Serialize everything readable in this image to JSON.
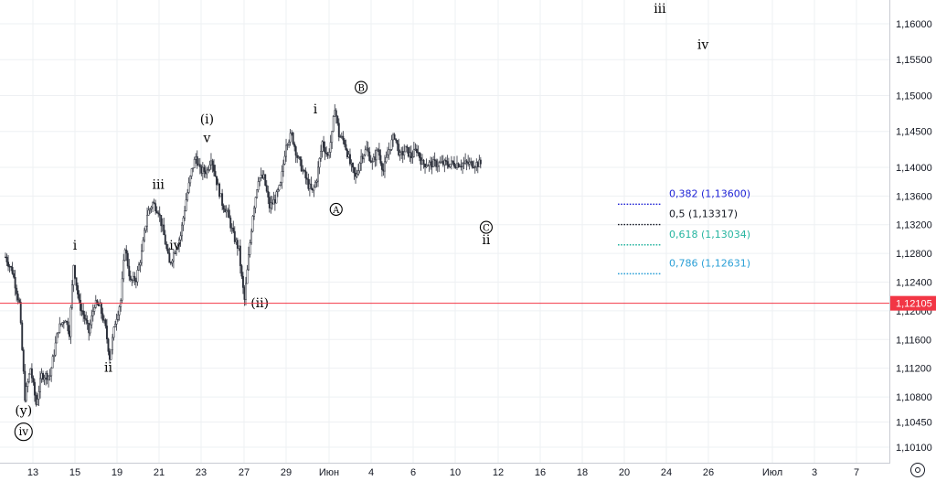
{
  "chart_data": {
    "type": "candlestick",
    "instrument_note": "",
    "y_axis": {
      "ticks": [
        "1,16000",
        "1,15500",
        "1,15000",
        "1,14500",
        "1,14000",
        "1,13600",
        "1,13200",
        "1,12800",
        "1,12400",
        "1,12000",
        "1,11600",
        "1,11200",
        "1,10800",
        "1,10450",
        "1,10100"
      ],
      "tick_values": [
        1.16,
        1.155,
        1.15,
        1.145,
        1.14,
        1.136,
        1.132,
        1.128,
        1.124,
        1.12,
        1.116,
        1.112,
        1.108,
        1.1045,
        1.101
      ]
    },
    "x_axis": {
      "ticks": [
        "13",
        "15",
        "19",
        "21",
        "23",
        "27",
        "29",
        "Июн",
        "4",
        "6",
        "10",
        "12",
        "16",
        "18",
        "20",
        "24",
        "26",
        "Июл",
        "3",
        "7"
      ]
    },
    "current_price": {
      "label": "1,12105",
      "value": 1.12105,
      "color": "#f23645"
    },
    "price_path": [
      [
        0,
        1.1275
      ],
      [
        0.5,
        1.1255
      ],
      [
        1,
        1.121
      ],
      [
        1.4,
        1.108
      ],
      [
        1.8,
        1.112
      ],
      [
        2.2,
        1.107
      ],
      [
        2.6,
        1.111
      ],
      [
        3.2,
        1.111
      ],
      [
        3.8,
        1.1175
      ],
      [
        4.3,
        1.119
      ],
      [
        4.6,
        1.117
      ],
      [
        4.9,
        1.1265
      ],
      [
        5.3,
        1.121
      ],
      [
        5.7,
        1.119
      ],
      [
        6.0,
        1.117
      ],
      [
        6.4,
        1.121
      ],
      [
        6.8,
        1.1205
      ],
      [
        7.2,
        1.1175
      ],
      [
        7.5,
        1.1135
      ],
      [
        7.9,
        1.1185
      ],
      [
        8.3,
        1.1215
      ],
      [
        8.6,
        1.129
      ],
      [
        9.0,
        1.124
      ],
      [
        9.4,
        1.1245
      ],
      [
        9.8,
        1.128
      ],
      [
        10.2,
        1.1335
      ],
      [
        10.6,
        1.135
      ],
      [
        11.0,
        1.134
      ],
      [
        11.4,
        1.1305
      ],
      [
        11.8,
        1.1265
      ],
      [
        12.2,
        1.1285
      ],
      [
        12.6,
        1.1305
      ],
      [
        13.0,
        1.1355
      ],
      [
        13.4,
        1.1395
      ],
      [
        13.7,
        1.1415
      ],
      [
        14.0,
        1.1395
      ],
      [
        14.5,
        1.1395
      ],
      [
        14.8,
        1.1415
      ],
      [
        15.2,
        1.138
      ],
      [
        15.6,
        1.135
      ],
      [
        16.0,
        1.1335
      ],
      [
        16.4,
        1.1305
      ],
      [
        16.8,
        1.1285
      ],
      [
        17.0,
        1.1245
      ],
      [
        17.2,
        1.1215
      ],
      [
        17.5,
        1.1275
      ],
      [
        17.8,
        1.1335
      ],
      [
        18.2,
        1.1385
      ],
      [
        18.6,
        1.1385
      ],
      [
        19.0,
        1.1345
      ],
      [
        19.4,
        1.1355
      ],
      [
        19.8,
        1.1375
      ],
      [
        20.2,
        1.1435
      ],
      [
        20.6,
        1.1445
      ],
      [
        21.0,
        1.1415
      ],
      [
        21.4,
        1.1395
      ],
      [
        21.8,
        1.1375
      ],
      [
        22.1,
        1.1365
      ],
      [
        22.4,
        1.1385
      ],
      [
        22.8,
        1.1435
      ],
      [
        23.2,
        1.1415
      ],
      [
        23.5,
        1.1445
      ],
      [
        23.7,
        1.1485
      ],
      [
        24.0,
        1.1445
      ],
      [
        24.4,
        1.1435
      ],
      [
        24.8,
        1.1405
      ],
      [
        25.2,
        1.1385
      ],
      [
        25.6,
        1.1415
      ],
      [
        26.0,
        1.1425
      ],
      [
        26.4,
        1.1405
      ],
      [
        26.8,
        1.1425
      ],
      [
        27.2,
        1.1395
      ],
      [
        27.6,
        1.1425
      ],
      [
        28.0,
        1.1445
      ],
      [
        28.4,
        1.1415
      ],
      [
        28.8,
        1.1425
      ],
      [
        29.2,
        1.1415
      ],
      [
        29.6,
        1.1425
      ],
      [
        30.0,
        1.1405
      ]
    ],
    "wave_labels": [
      {
        "text": "(y)",
        "x": 1.3,
        "y": 1.1055
      },
      {
        "text": "iv",
        "x": 1.3,
        "y": 1.1025,
        "circled": true
      },
      {
        "text": "i",
        "x": 5.0,
        "y": 1.1285
      },
      {
        "text": "ii",
        "x": 7.4,
        "y": 1.1115
      },
      {
        "text": "iii",
        "x": 11.0,
        "y": 1.137
      },
      {
        "text": "iv",
        "x": 12.2,
        "y": 1.1285
      },
      {
        "text": "(i)",
        "x": 14.5,
        "y": 1.1461
      },
      {
        "text": "v",
        "x": 14.5,
        "y": 1.1435
      },
      {
        "text": "(ii)",
        "x": 18.3,
        "y": 1.1205
      },
      {
        "text": "i",
        "x": 22.3,
        "y": 1.1475
      },
      {
        "text": "A",
        "x": 23.8,
        "y": 1.1335,
        "circled": true
      },
      {
        "text": "B",
        "x": 25.6,
        "y": 1.1505,
        "circled": true
      },
      {
        "text": "C",
        "x": 34.6,
        "y": 1.131,
        "circled": true
      },
      {
        "text": "ii",
        "x": 34.6,
        "y": 1.1293
      },
      {
        "text": "iii",
        "x": 47.1,
        "y": 1.1615
      },
      {
        "text": "iv",
        "x": 50.2,
        "y": 1.1565
      }
    ],
    "fibonacci_levels": [
      {
        "label": "0,382 (1,13600)",
        "value": 1.136,
        "color": "#1e22d6"
      },
      {
        "label": "0,5 (1,13317)",
        "value": 1.13317,
        "color": "#131722"
      },
      {
        "label": "0,618 (1,13034)",
        "value": 1.13034,
        "color": "#26b5a0"
      },
      {
        "label": "0,786 (1,12631)",
        "value": 1.12631,
        "color": "#2a9fd6"
      }
    ]
  }
}
